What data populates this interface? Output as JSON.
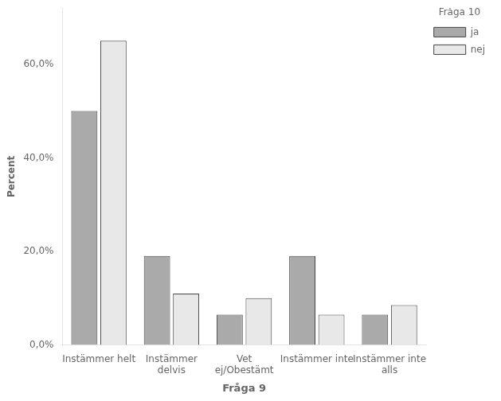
{
  "chart_data": {
    "type": "bar",
    "categories": [
      "Instämmer helt",
      "Instämmer\ndelvis",
      "Vet\nej/Obestämt",
      "Instämmer inte",
      "Instämmer inte\nalls"
    ],
    "series": [
      {
        "name": "ja",
        "color": "#aaaaaa",
        "values": [
          50.0,
          19.0,
          6.5,
          19.0,
          6.5
        ]
      },
      {
        "name": "nej",
        "color": "#e8e8e8",
        "values": [
          65.0,
          11.0,
          10.0,
          6.5,
          8.5
        ]
      }
    ],
    "xlabel": "Fråga 9",
    "ylabel": "Percent",
    "legend_title": "Fråga 10",
    "legend": "right",
    "ylim": [
      0,
      72
    ],
    "yticks": [
      {
        "value": 0.0,
        "label": "0,0%"
      },
      {
        "value": 20.0,
        "label": "20,0%"
      },
      {
        "value": 40.0,
        "label": "40,0%"
      },
      {
        "value": 60.0,
        "label": "60,0%"
      }
    ],
    "grid": false
  }
}
